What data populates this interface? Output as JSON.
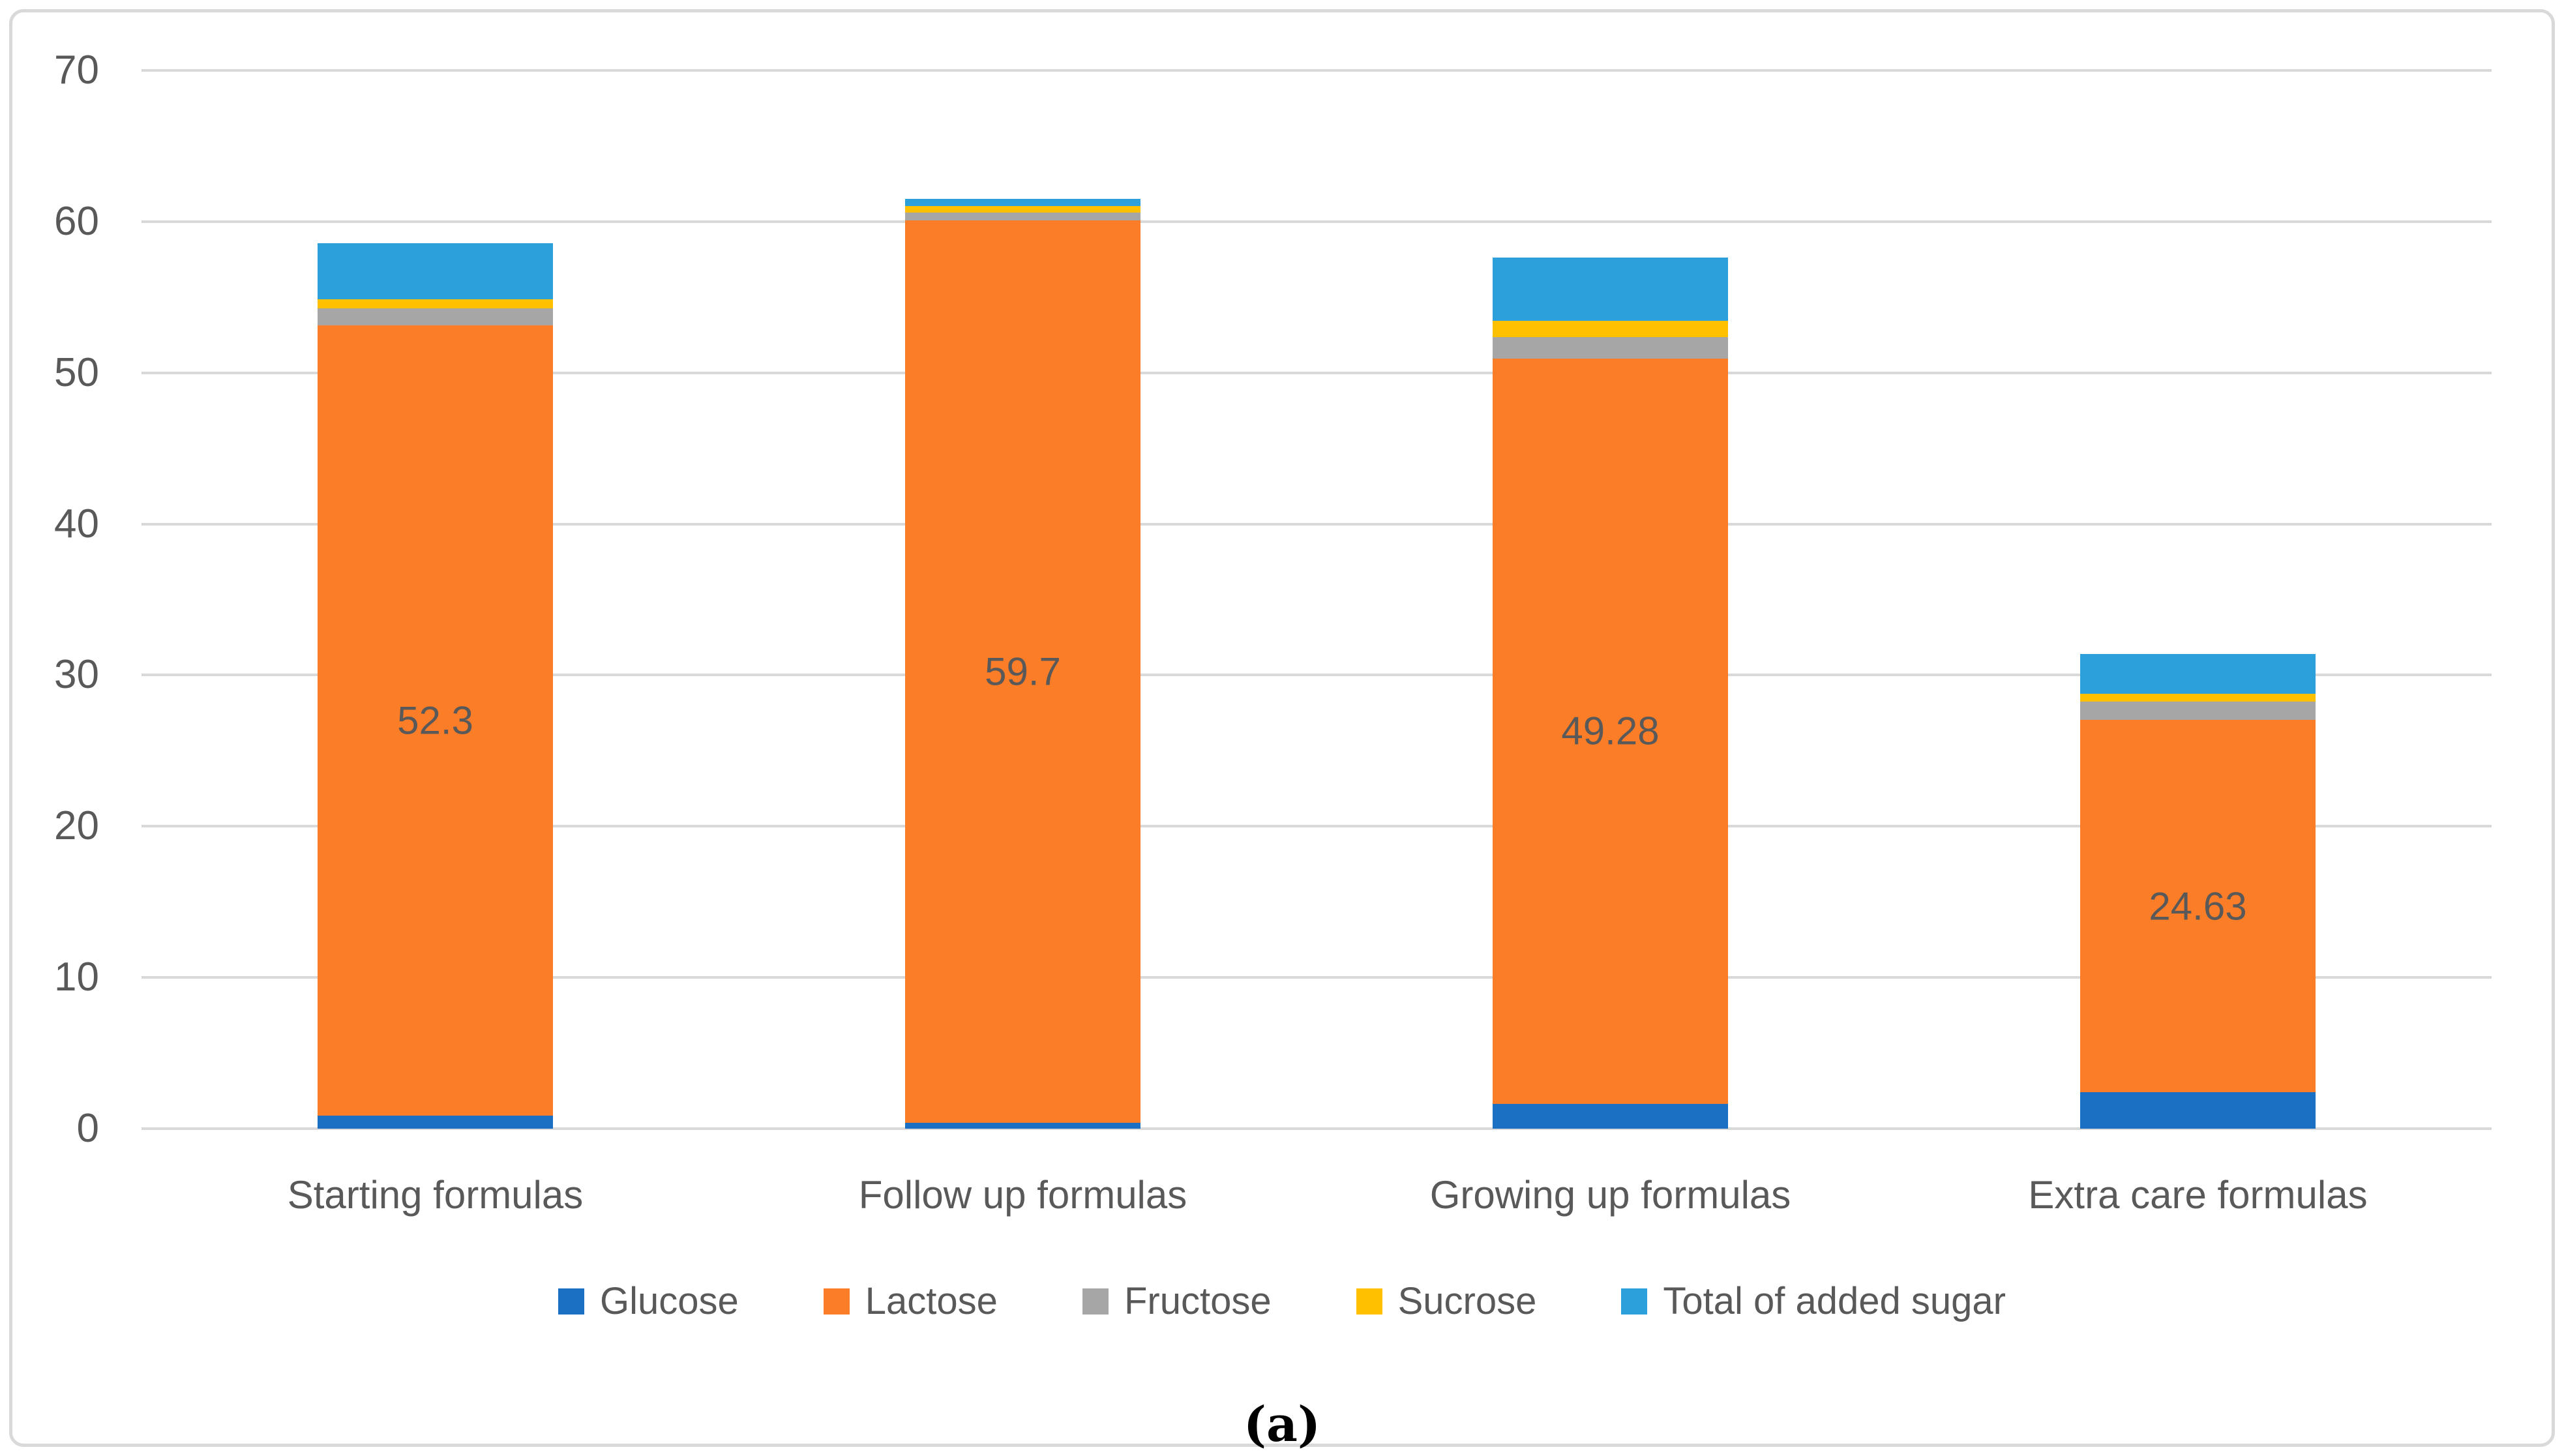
{
  "figure": {
    "caption": "(a)"
  },
  "chart_data": {
    "type": "bar",
    "stacked": true,
    "title": "",
    "xlabel": "",
    "ylabel": "",
    "categories": [
      "Starting formulas",
      "Follow up formulas",
      "Growing up formulas",
      "Extra care formulas"
    ],
    "series": [
      {
        "name": "Glucose",
        "color": "#1C70C4",
        "values": [
          0.85,
          0.4,
          1.65,
          2.4
        ]
      },
      {
        "name": "Lactose",
        "color": "#FB7D28",
        "values": [
          52.3,
          59.7,
          49.28,
          24.63
        ],
        "data_labels": [
          "52.3",
          "59.7",
          "49.28",
          "24.63"
        ]
      },
      {
        "name": "Fructose",
        "color": "#A6A6A6",
        "values": [
          1.1,
          0.5,
          1.45,
          1.2
        ]
      },
      {
        "name": "Sucrose",
        "color": "#FFC000",
        "values": [
          0.6,
          0.45,
          1.05,
          0.55
        ]
      },
      {
        "name": "Total of added sugar",
        "color": "#2BA0DB",
        "values": [
          3.7,
          0.45,
          4.2,
          2.6
        ]
      }
    ],
    "ylim": [
      0,
      70
    ],
    "yticks": [
      0,
      10,
      20,
      30,
      40,
      50,
      60,
      70
    ],
    "grid": true,
    "legend_position": "bottom",
    "colors": {
      "gridline": "#D9D9D9",
      "axis_text": "#595959",
      "data_label_text": "#595959",
      "figure_border": "#D9D9D9"
    }
  }
}
